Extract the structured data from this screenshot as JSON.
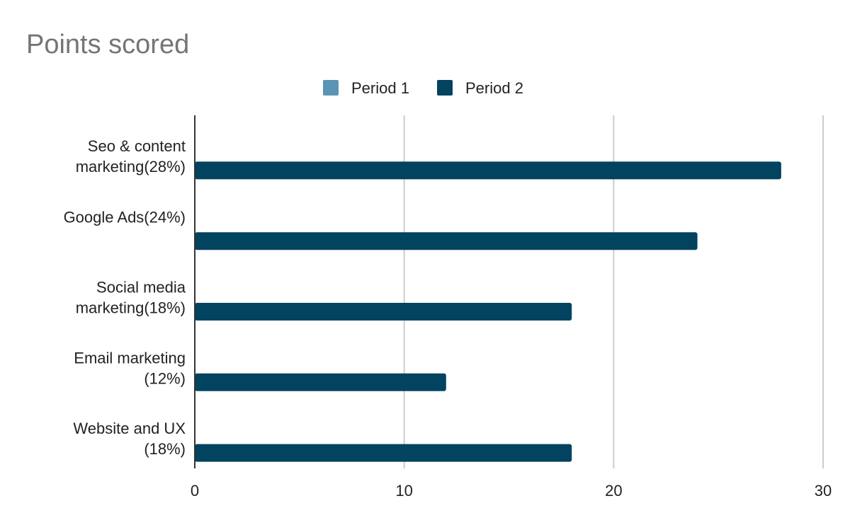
{
  "chart_data": {
    "type": "bar",
    "orientation": "horizontal",
    "title": "Points scored",
    "categories": [
      [
        "Seo & content",
        "marketing(28%)"
      ],
      [
        "Google Ads(24%)"
      ],
      [
        "Social media",
        "marketing(18%)"
      ],
      [
        "Email marketing",
        "(12%)"
      ],
      [
        "Website and UX",
        "(18%)"
      ]
    ],
    "series": [
      {
        "name": "Period 1",
        "color": "#5b95b5",
        "values": [
          0,
          0,
          0,
          0,
          0
        ]
      },
      {
        "name": "Period 2",
        "color": "#02435f",
        "values": [
          28,
          24,
          18,
          12,
          18
        ]
      }
    ],
    "xlim": [
      0,
      30
    ],
    "xticks": [
      0,
      10,
      20,
      30
    ],
    "grid": true,
    "legend_position": "top-center"
  }
}
